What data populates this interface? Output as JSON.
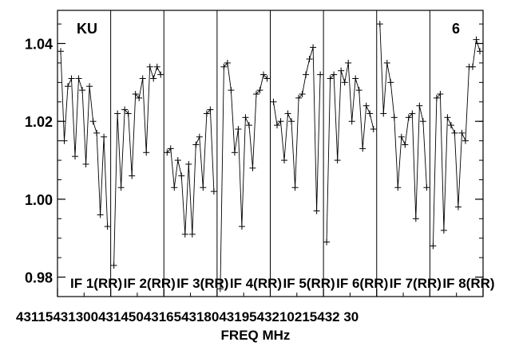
{
  "chart_data": {
    "type": "line",
    "title": "",
    "corner_left": "KU",
    "corner_right": "6",
    "xlabel": "FREQ MHz",
    "ylabel": "",
    "ylim": [
      0.975,
      1.0485
    ],
    "y_ticks": [
      0.98,
      1.0,
      1.02,
      1.04
    ],
    "y_tick_labels": [
      "0.98",
      "1.00",
      "1.02",
      "1.04"
    ],
    "x_tick_labels": [
      "43115",
      "43130",
      "43145",
      "43150",
      "43165",
      "43180",
      "43195",
      "43210",
      "43215",
      "43230"
    ],
    "x_axis_text": "4311543130043145043165431804319543210215432 30",
    "panels": [
      {
        "label": "IF 1(RR)",
        "values": [
          1.038,
          1.015,
          1.029,
          1.031,
          1.011,
          1.031,
          1.028,
          1.009,
          1.029,
          1.02,
          1.017,
          0.996,
          1.016,
          0.993
        ]
      },
      {
        "label": "IF 2(RR)",
        "values": [
          0.983,
          1.022,
          1.003,
          1.023,
          1.022,
          1.006,
          1.027,
          1.026,
          1.031,
          1.012,
          1.034,
          1.031,
          1.034,
          1.032
        ]
      },
      {
        "label": "IF 3(RR)",
        "values": [
          1.012,
          1.013,
          1.003,
          1.01,
          1.006,
          0.991,
          1.009,
          0.991,
          1.014,
          1.016,
          1.003,
          1.022,
          1.023,
          1.002
        ]
      },
      {
        "label": "IF 4(RR)",
        "values": [
          0.977,
          1.034,
          1.035,
          1.028,
          1.012,
          1.018,
          0.993,
          1.021,
          1.019,
          1.008,
          1.027,
          1.028,
          1.032,
          1.031
        ]
      },
      {
        "label": "IF 5(RR)",
        "values": [
          1.025,
          1.019,
          1.02,
          1.01,
          1.022,
          1.02,
          1.003,
          1.026,
          1.027,
          1.032,
          1.036,
          1.039,
          0.997,
          1.032
        ]
      },
      {
        "label": "IF 6(RR)",
        "values": [
          0.989,
          1.031,
          1.032,
          1.01,
          1.033,
          1.03,
          1.035,
          1.02,
          1.031,
          1.028,
          1.013,
          1.024,
          1.022,
          1.018
        ]
      },
      {
        "label": "IF 7(RR)",
        "values": [
          1.045,
          1.022,
          1.035,
          1.03,
          1.021,
          1.003,
          1.016,
          1.014,
          1.021,
          1.022,
          0.995,
          1.024,
          1.02,
          1.003
        ]
      },
      {
        "label": "IF 8(RR)",
        "values": [
          0.988,
          1.026,
          1.027,
          0.992,
          1.021,
          1.019,
          1.017,
          0.998,
          1.017,
          1.015,
          1.034,
          1.034,
          1.041,
          1.038
        ]
      }
    ]
  }
}
